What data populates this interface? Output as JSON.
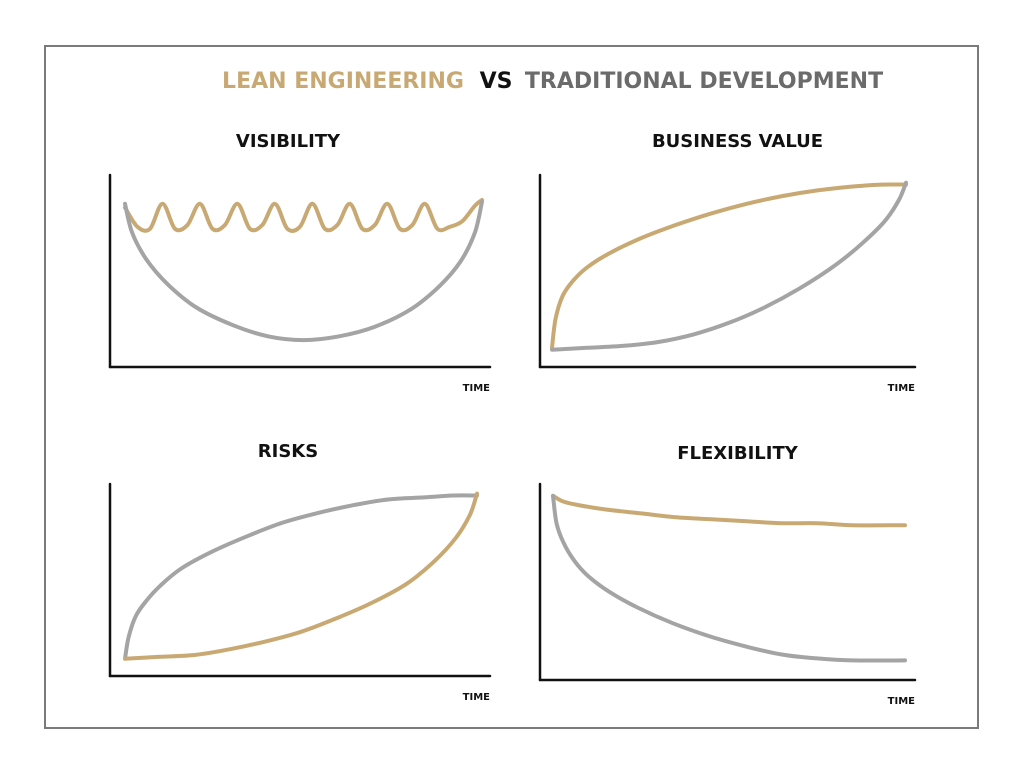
{
  "header": {
    "lean_label": "LEAN ENGINEERING",
    "vs_label": "VS",
    "traditional_label": "TRADITIONAL DEVELOPMENT"
  },
  "colors": {
    "lean": "#c9a973",
    "traditional": "#a4a4a4",
    "traditional_text": "#6b6b6b",
    "axis": "#111111",
    "frame": "#7a7a7a"
  },
  "chart_data": [
    {
      "type": "line",
      "title": "VISIBILITY",
      "xlabel": "TIME",
      "ylabel": "",
      "xlim": [
        0,
        1
      ],
      "ylim": [
        0,
        1
      ],
      "grid": false,
      "series": [
        {
          "name": "LEAN ENGINEERING",
          "color": "lean",
          "x": [
            0.0,
            0.035,
            0.07,
            0.105,
            0.14,
            0.175,
            0.21,
            0.245,
            0.28,
            0.315,
            0.35,
            0.385,
            0.42,
            0.455,
            0.49,
            0.525,
            0.56,
            0.595,
            0.63,
            0.665,
            0.7,
            0.735,
            0.77,
            0.805,
            0.84,
            0.875,
            0.91,
            0.945,
            0.98,
            1.0
          ],
          "y": [
            0.83,
            0.73,
            0.72,
            0.85,
            0.72,
            0.74,
            0.85,
            0.72,
            0.74,
            0.85,
            0.72,
            0.74,
            0.85,
            0.72,
            0.73,
            0.85,
            0.72,
            0.74,
            0.85,
            0.72,
            0.74,
            0.85,
            0.72,
            0.74,
            0.85,
            0.72,
            0.73,
            0.76,
            0.84,
            0.87
          ]
        },
        {
          "name": "TRADITIONAL DEVELOPMENT",
          "color": "traditional",
          "x": [
            0.0,
            0.02,
            0.06,
            0.12,
            0.2,
            0.3,
            0.4,
            0.5,
            0.6,
            0.7,
            0.8,
            0.88,
            0.94,
            0.98,
            1.0
          ],
          "y": [
            0.85,
            0.7,
            0.56,
            0.43,
            0.31,
            0.22,
            0.16,
            0.14,
            0.16,
            0.21,
            0.3,
            0.42,
            0.55,
            0.7,
            0.86
          ]
        }
      ]
    },
    {
      "type": "line",
      "title": "BUSINESS VALUE",
      "xlabel": "TIME",
      "ylabel": "",
      "xlim": [
        0,
        1
      ],
      "ylim": [
        0,
        1
      ],
      "grid": false,
      "series": [
        {
          "name": "LEAN ENGINEERING",
          "color": "lean",
          "x": [
            0.0,
            0.01,
            0.03,
            0.06,
            0.1,
            0.16,
            0.25,
            0.35,
            0.45,
            0.55,
            0.65,
            0.75,
            0.85,
            0.93,
            1.0
          ],
          "y": [
            0.1,
            0.25,
            0.37,
            0.45,
            0.52,
            0.59,
            0.67,
            0.74,
            0.8,
            0.85,
            0.89,
            0.92,
            0.94,
            0.95,
            0.95
          ]
        },
        {
          "name": "TRADITIONAL DEVELOPMENT",
          "color": "traditional",
          "x": [
            0.0,
            0.1,
            0.2,
            0.3,
            0.4,
            0.5,
            0.6,
            0.7,
            0.8,
            0.88,
            0.94,
            0.98,
            1.0
          ],
          "y": [
            0.09,
            0.1,
            0.11,
            0.13,
            0.17,
            0.23,
            0.31,
            0.41,
            0.53,
            0.65,
            0.76,
            0.87,
            0.96
          ]
        }
      ]
    },
    {
      "type": "line",
      "title": "RISKS",
      "xlabel": "TIME",
      "ylabel": "",
      "xlim": [
        0,
        1
      ],
      "ylim": [
        0,
        1
      ],
      "grid": false,
      "series": [
        {
          "name": "TRADITIONAL DEVELOPMENT",
          "color": "traditional",
          "x": [
            0.0,
            0.01,
            0.03,
            0.06,
            0.1,
            0.16,
            0.25,
            0.35,
            0.45,
            0.55,
            0.65,
            0.75,
            0.85,
            0.93,
            1.0
          ],
          "y": [
            0.09,
            0.2,
            0.31,
            0.39,
            0.47,
            0.56,
            0.65,
            0.73,
            0.8,
            0.85,
            0.89,
            0.92,
            0.93,
            0.94,
            0.94
          ]
        },
        {
          "name": "LEAN ENGINEERING",
          "color": "lean",
          "x": [
            0.0,
            0.1,
            0.2,
            0.3,
            0.4,
            0.5,
            0.6,
            0.7,
            0.8,
            0.88,
            0.94,
            0.98,
            1.0
          ],
          "y": [
            0.09,
            0.1,
            0.11,
            0.14,
            0.18,
            0.23,
            0.3,
            0.38,
            0.48,
            0.6,
            0.72,
            0.84,
            0.95
          ]
        }
      ]
    },
    {
      "type": "line",
      "title": "FLEXIBILITY",
      "xlabel": "TIME",
      "ylabel": "",
      "xlim": [
        0,
        1
      ],
      "ylim": [
        0,
        1
      ],
      "grid": false,
      "series": [
        {
          "name": "LEAN ENGINEERING",
          "color": "lean",
          "x": [
            0.0,
            0.03,
            0.08,
            0.15,
            0.25,
            0.35,
            0.45,
            0.55,
            0.65,
            0.75,
            0.85,
            1.0
          ],
          "y": [
            0.94,
            0.91,
            0.89,
            0.87,
            0.85,
            0.83,
            0.82,
            0.81,
            0.8,
            0.8,
            0.79,
            0.79
          ]
        },
        {
          "name": "TRADITIONAL DEVELOPMENT",
          "color": "traditional",
          "x": [
            0.0,
            0.01,
            0.03,
            0.06,
            0.1,
            0.16,
            0.24,
            0.34,
            0.45,
            0.55,
            0.65,
            0.75,
            0.85,
            1.0
          ],
          "y": [
            0.94,
            0.8,
            0.7,
            0.61,
            0.53,
            0.45,
            0.37,
            0.29,
            0.22,
            0.17,
            0.13,
            0.11,
            0.1,
            0.1
          ]
        }
      ]
    }
  ]
}
